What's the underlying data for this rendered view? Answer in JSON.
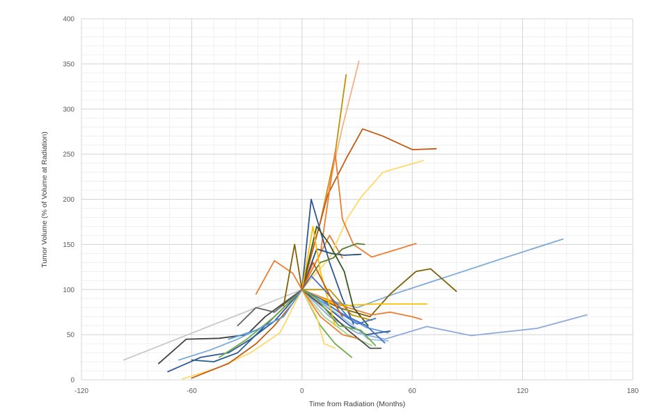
{
  "chart_data": {
    "type": "line",
    "title": "",
    "xlabel": "Time from Radiation (Months)",
    "ylabel": "Tumor Volume (% of Volume at Radiation)",
    "xlim": [
      -120,
      180
    ],
    "ylim": [
      0,
      400
    ],
    "xticks": [
      -120,
      -60,
      0,
      60,
      120,
      180
    ],
    "yticks": [
      0,
      50,
      100,
      150,
      200,
      250,
      300,
      350,
      400
    ],
    "grid": true,
    "legend": "none",
    "series": [
      {
        "color": "#c9c9c9",
        "x": [
          -97,
          0
        ],
        "y": [
          22,
          100
        ]
      },
      {
        "color": "#404040",
        "x": [
          -78,
          -63,
          -45,
          -30,
          -20,
          0
        ],
        "y": [
          18,
          45,
          46,
          50,
          70,
          100
        ]
      },
      {
        "color": "#2e5597",
        "x": [
          -73,
          -55,
          -40,
          -28,
          -15,
          0
        ],
        "y": [
          9,
          25,
          30,
          45,
          65,
          100
        ]
      },
      {
        "color": "#7caad8",
        "x": [
          -67,
          -50,
          -35,
          -20,
          0
        ],
        "y": [
          22,
          33,
          45,
          60,
          100
        ]
      },
      {
        "color": "#ffd966",
        "x": [
          -65,
          -45,
          -28,
          -12,
          0
        ],
        "y": [
          1,
          14,
          30,
          52,
          100
        ]
      },
      {
        "color": "#c55a11",
        "x": [
          -60,
          -40,
          -25,
          -15,
          -5,
          0
        ],
        "y": [
          2,
          18,
          40,
          60,
          85,
          100
        ]
      },
      {
        "color": "#255e91",
        "x": [
          -60,
          -48,
          -35,
          -20,
          0
        ],
        "y": [
          22,
          20,
          30,
          60,
          100
        ]
      },
      {
        "color": "#70ad47",
        "x": [
          -45,
          -30,
          -15,
          0
        ],
        "y": [
          25,
          45,
          70,
          100
        ]
      },
      {
        "color": "#ed7d31",
        "x": [
          -25,
          -15,
          -5,
          0,
          8,
          15,
          22
        ],
        "y": [
          95,
          132,
          118,
          100,
          132,
          160,
          135
        ]
      },
      {
        "color": "#636363",
        "x": [
          -35,
          -25,
          -15,
          0
        ],
        "y": [
          60,
          80,
          75,
          100
        ]
      },
      {
        "color": "#5b9bd5",
        "x": [
          -40,
          -25,
          -10,
          0
        ],
        "y": [
          45,
          55,
          70,
          100
        ]
      },
      {
        "color": "#806000",
        "x": [
          -10,
          -4,
          0
        ],
        "y": [
          82,
          150,
          100
        ]
      },
      {
        "color": "#bf9000",
        "x": [
          0,
          10,
          18,
          24
        ],
        "y": [
          100,
          175,
          250,
          338
        ]
      },
      {
        "color": "#f4b183",
        "x": [
          0,
          12,
          22,
          31
        ],
        "y": [
          100,
          190,
          280,
          353
        ]
      },
      {
        "color": "#c55a11",
        "x": [
          0,
          14,
          24,
          33,
          44,
          60,
          73
        ],
        "y": [
          100,
          205,
          245,
          278,
          270,
          255,
          256
        ]
      },
      {
        "color": "#ffd966",
        "x": [
          0,
          15,
          25,
          32,
          44,
          66
        ],
        "y": [
          100,
          135,
          180,
          202,
          230,
          243
        ]
      },
      {
        "color": "#ed7d31",
        "x": [
          0,
          10,
          18,
          22,
          28,
          38,
          62
        ],
        "y": [
          100,
          140,
          252,
          178,
          150,
          136,
          151
        ]
      },
      {
        "color": "#2e5597",
        "x": [
          0,
          5,
          10,
          15,
          22,
          28
        ],
        "y": [
          100,
          200,
          165,
          130,
          90,
          62
        ]
      },
      {
        "color": "#1f4e79",
        "x": [
          0,
          8,
          16,
          23,
          32
        ],
        "y": [
          100,
          145,
          140,
          138,
          139
        ]
      },
      {
        "color": "#5a7a2e",
        "x": [
          0,
          10,
          17,
          22,
          30,
          34
        ],
        "y": [
          100,
          130,
          135,
          145,
          151,
          150
        ]
      },
      {
        "color": "#7caad8",
        "x": [
          0,
          15,
          30,
          50,
          80,
          110,
          142
        ],
        "y": [
          100,
          88,
          80,
          95,
          115,
          135,
          156
        ]
      },
      {
        "color": "#8eaadb",
        "x": [
          0,
          15,
          30,
          45,
          68,
          92,
          128,
          155
        ],
        "y": [
          100,
          70,
          52,
          45,
          59,
          49,
          57,
          72
        ]
      },
      {
        "color": "#806000",
        "x": [
          0,
          20,
          37,
          48,
          62,
          70,
          84
        ],
        "y": [
          100,
          80,
          70,
          95,
          120,
          123,
          98
        ]
      },
      {
        "color": "#ed7d31",
        "x": [
          0,
          25,
          38,
          48,
          60,
          65
        ],
        "y": [
          100,
          80,
          72,
          75,
          70,
          67
        ]
      },
      {
        "color": "#ffc000",
        "x": [
          0,
          20,
          40,
          68
        ],
        "y": [
          100,
          82,
          84,
          84
        ]
      },
      {
        "color": "#375623",
        "x": [
          0,
          8,
          15,
          23,
          28,
          36
        ],
        "y": [
          100,
          170,
          150,
          120,
          80,
          60
        ]
      },
      {
        "color": "#bf9000",
        "x": [
          0,
          15,
          27,
          38
        ],
        "y": [
          100,
          100,
          72,
          66
        ]
      },
      {
        "color": "#5b9bd5",
        "x": [
          0,
          12,
          25,
          35,
          47
        ],
        "y": [
          100,
          85,
          70,
          58,
          52
        ]
      },
      {
        "color": "#4472c4",
        "x": [
          0,
          10,
          20,
          30,
          40
        ],
        "y": [
          100,
          90,
          75,
          62,
          68
        ]
      },
      {
        "color": "#2e5597",
        "x": [
          0,
          14,
          26,
          35,
          48
        ],
        "y": [
          100,
          80,
          60,
          50,
          54
        ]
      },
      {
        "color": "#9dc3e6",
        "x": [
          0,
          18,
          28,
          36,
          47
        ],
        "y": [
          100,
          75,
          60,
          45,
          43
        ]
      },
      {
        "color": "#a9d08e",
        "x": [
          0,
          12,
          25,
          38
        ],
        "y": [
          100,
          70,
          50,
          38
        ]
      },
      {
        "color": "#70ad47",
        "x": [
          0,
          10,
          18,
          27
        ],
        "y": [
          100,
          60,
          40,
          25
        ]
      },
      {
        "color": "#ffd966",
        "x": [
          0,
          8,
          12,
          18
        ],
        "y": [
          100,
          70,
          40,
          35
        ]
      },
      {
        "color": "#4a4a4a",
        "x": [
          0,
          12,
          25,
          37,
          43
        ],
        "y": [
          100,
          80,
          55,
          35,
          35
        ]
      },
      {
        "color": "#ed7d31",
        "x": [
          0,
          10,
          22,
          30
        ],
        "y": [
          100,
          70,
          50,
          46
        ]
      },
      {
        "color": "#ffc000",
        "x": [
          0,
          6,
          10,
          18
        ],
        "y": [
          100,
          170,
          120,
          60
        ]
      },
      {
        "color": "#4472c4",
        "x": [
          0,
          5,
          12,
          25,
          35,
          45
        ],
        "y": [
          100,
          115,
          100,
          70,
          60,
          41
        ]
      },
      {
        "color": "#70ad47",
        "x": [
          0,
          8,
          20,
          32,
          40
        ],
        "y": [
          100,
          90,
          60,
          55,
          38
        ]
      },
      {
        "color": "#c55a11",
        "x": [
          0,
          6,
          16,
          22
        ],
        "y": [
          100,
          130,
          90,
          70
        ]
      }
    ]
  }
}
